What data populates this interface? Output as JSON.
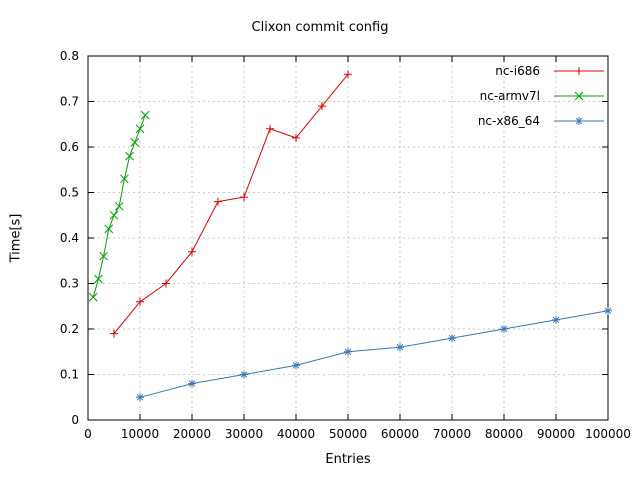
{
  "chart_data": {
    "type": "line",
    "title": "Clixon commit config",
    "xlabel": "Entries",
    "ylabel": "Time[s]",
    "xlim": [
      0,
      100000
    ],
    "ylim": [
      0,
      0.8
    ],
    "xticks": [
      0,
      10000,
      20000,
      30000,
      40000,
      50000,
      60000,
      70000,
      80000,
      90000,
      100000
    ],
    "yticks": [
      0,
      0.1,
      0.2,
      0.3,
      0.4,
      0.5,
      0.6,
      0.7,
      0.8
    ],
    "grid": true,
    "legend_position": "top-right-inside",
    "series": [
      {
        "name": "nc-i686",
        "color": "#dd0000",
        "marker": "plus",
        "points": [
          [
            5000,
            0.19
          ],
          [
            10000,
            0.26
          ],
          [
            15000,
            0.3
          ],
          [
            20000,
            0.37
          ],
          [
            25000,
            0.48
          ],
          [
            30000,
            0.49
          ],
          [
            35000,
            0.64
          ],
          [
            40000,
            0.62
          ],
          [
            45000,
            0.69
          ],
          [
            50000,
            0.76
          ]
        ]
      },
      {
        "name": "nc-armv7l",
        "color": "#00a000",
        "marker": "cross",
        "points": [
          [
            1000,
            0.27
          ],
          [
            2000,
            0.31
          ],
          [
            3000,
            0.36
          ],
          [
            4000,
            0.42
          ],
          [
            5000,
            0.45
          ],
          [
            6000,
            0.47
          ],
          [
            7000,
            0.53
          ],
          [
            8000,
            0.58
          ],
          [
            9000,
            0.61
          ],
          [
            10000,
            0.64
          ],
          [
            11000,
            0.67
          ]
        ]
      },
      {
        "name": "nc-x86_64",
        "color": "#3878b4",
        "marker": "asterisk",
        "points": [
          [
            10000,
            0.05
          ],
          [
            20000,
            0.08
          ],
          [
            30000,
            0.1
          ],
          [
            40000,
            0.12
          ],
          [
            50000,
            0.15
          ],
          [
            60000,
            0.16
          ],
          [
            70000,
            0.18
          ],
          [
            80000,
            0.2
          ],
          [
            90000,
            0.22
          ],
          [
            100000,
            0.24
          ]
        ]
      }
    ]
  }
}
